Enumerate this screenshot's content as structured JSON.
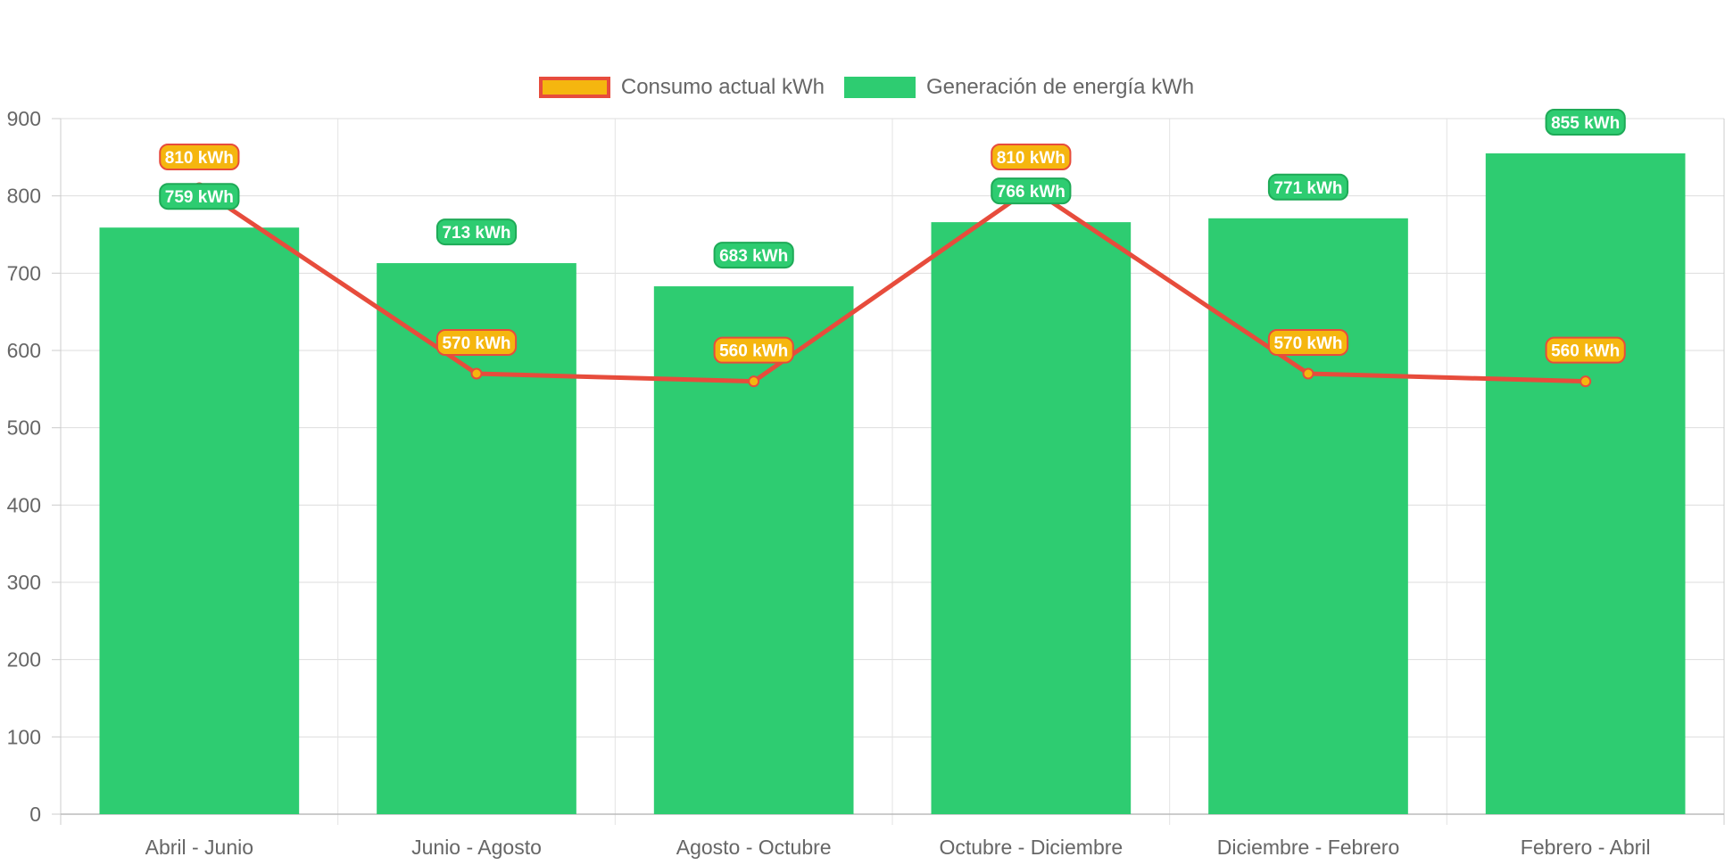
{
  "chart_data": {
    "type": "bar",
    "categories": [
      "Abril - Junio",
      "Junio - Agosto",
      "Agosto - Octubre",
      "Octubre - Diciembre",
      "Diciembre - Febrero",
      "Febrero - Abril"
    ],
    "series": [
      {
        "name": "Consumo actual kWh",
        "type": "line",
        "values": [
          810,
          570,
          560,
          810,
          570,
          560
        ],
        "labels": [
          "810 kWh",
          "570 kWh",
          "560 kWh",
          "810 kWh",
          "570 kWh",
          "560 kWh"
        ],
        "line_color": "#e74c3c",
        "fill_color": "#f5b60f"
      },
      {
        "name": "Generación de energía kWh",
        "type": "bar",
        "values": [
          759,
          713,
          683,
          766,
          771,
          855
        ],
        "labels": [
          "759 kWh",
          "713 kWh",
          "683 kWh",
          "766 kWh",
          "771 kWh",
          "855 kWh"
        ],
        "color": "#2ecc71",
        "label_border": "#1eaa57"
      }
    ],
    "ylim": [
      0,
      900
    ],
    "yticks": [
      0,
      100,
      200,
      300,
      400,
      500,
      600,
      700,
      800,
      900
    ],
    "grid": true,
    "legend_position": "top"
  }
}
